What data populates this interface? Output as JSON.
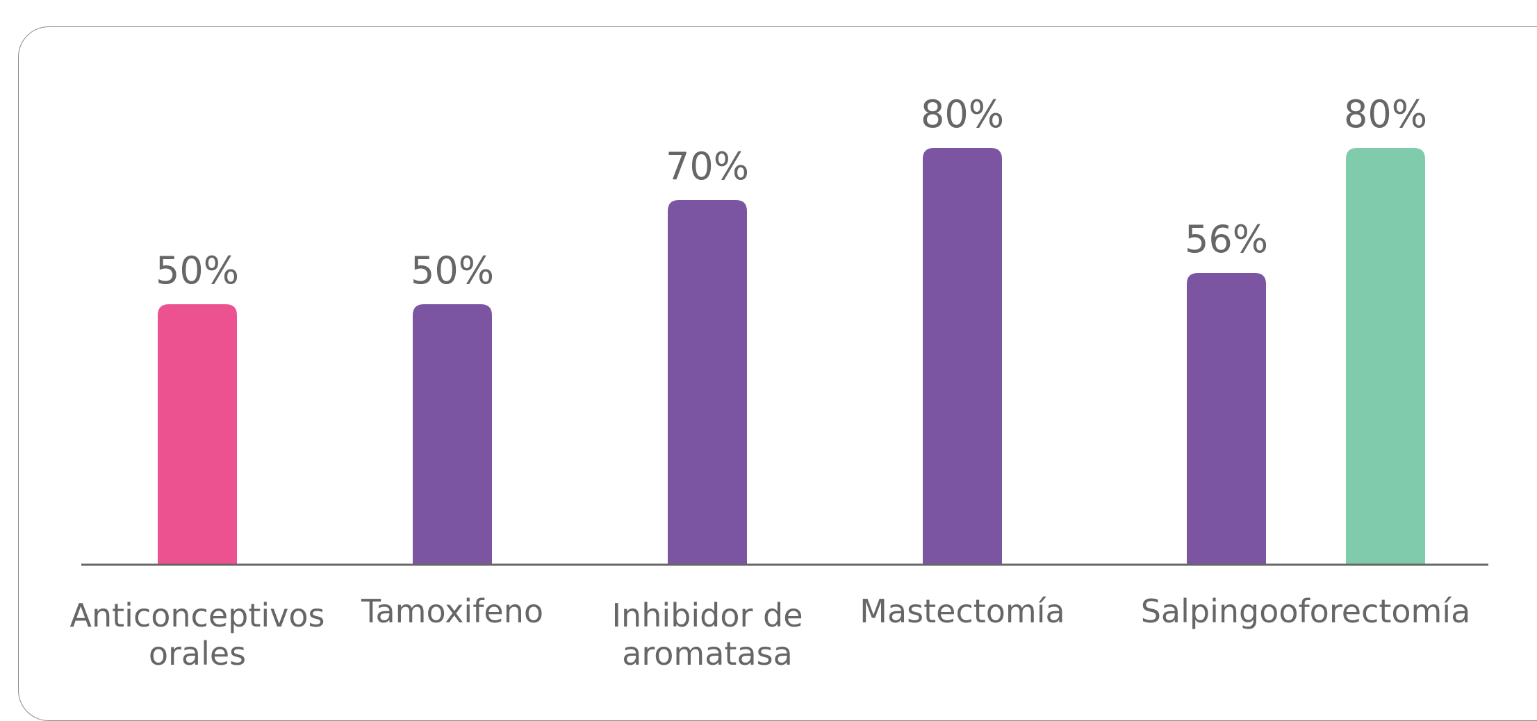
{
  "chart_data": {
    "type": "bar",
    "ylim": [
      0,
      100
    ],
    "categories": [
      {
        "label": [
          "Anticonceptivos",
          "orales"
        ]
      },
      {
        "label": [
          "Tamoxifeno"
        ]
      },
      {
        "label": [
          "Inhibidor de",
          "aromatasa"
        ]
      },
      {
        "label": [
          "Mastectomía"
        ]
      },
      {
        "label": [
          "Salpingooforectomía"
        ]
      }
    ],
    "bars": [
      {
        "category": "Anticonceptivos orales",
        "value": 50,
        "label": "50%",
        "color": "#ec5290"
      },
      {
        "category": "Tamoxifeno",
        "value": 50,
        "label": "50%",
        "color": "#7b55a1"
      },
      {
        "category": "Inhibidor de aromatasa",
        "value": 70,
        "label": "70%",
        "color": "#7b55a1"
      },
      {
        "category": "Mastectomía",
        "value": 80,
        "label": "80%",
        "color": "#7b55a1"
      },
      {
        "category": "Salpingooforectomía",
        "value": 56,
        "label": "56%",
        "color": "#7b55a1"
      },
      {
        "category": "Salpingooforectomía",
        "value": 80,
        "label": "80%",
        "color": "#80cbab"
      }
    ],
    "grid": false,
    "legend": "none"
  },
  "colors": {
    "axis": "#666666",
    "text": "#666666",
    "frame": "#8a8a8a"
  }
}
